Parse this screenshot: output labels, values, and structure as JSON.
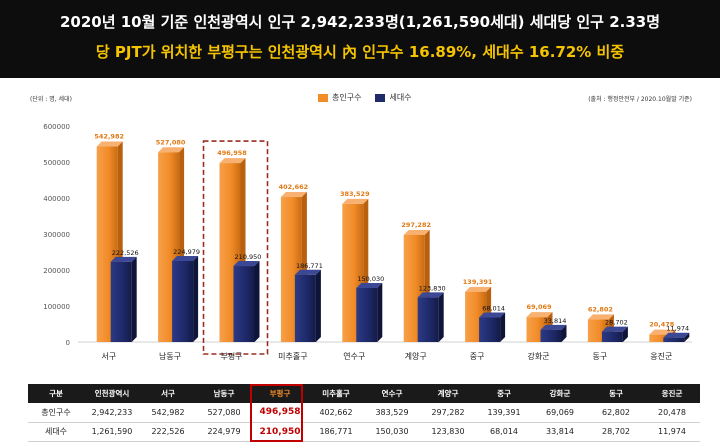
{
  "header": {
    "line1": "2020년 10월 기준 인천광역시 인구 2,942,233명(1,261,590세대) 세대당 인구 2.33명",
    "line2": "당 PJT가 위치한 부평구는 인천광역시 內 인구수 16.89%, 세대수 16.72% 비중"
  },
  "unit_note": "(단위 : 명, 세대)",
  "source_note": "(출처 : 행정안전부 / 2020.10월말 기준)",
  "colors": {
    "orange": "#f28c28",
    "navy": "#1f2a6b",
    "highlight": "#9b2d20",
    "banner": "#0d0d0d",
    "line2": "#f5c400"
  },
  "chart_data": {
    "type": "bar",
    "categories": [
      "서구",
      "남동구",
      "부평구",
      "미추홀구",
      "연수구",
      "계양구",
      "중구",
      "강화군",
      "동구",
      "옹진군"
    ],
    "series": [
      {
        "name": "총인구수",
        "values": [
          542982,
          527080,
          496958,
          402662,
          383529,
          297282,
          139391,
          69069,
          62802,
          20478
        ],
        "labels": [
          "542,982",
          "527,080",
          "496,958",
          "402,662",
          "383,529",
          "297,282",
          "139,391",
          "69,069",
          "62,802",
          "20,478"
        ]
      },
      {
        "name": "세대수",
        "values": [
          222526,
          224979,
          210950,
          186771,
          150030,
          123830,
          68014,
          33814,
          28702,
          11974
        ],
        "labels": [
          "222,526",
          "224,979",
          "210,950",
          "186,771",
          "150,030",
          "123,830",
          "68,014",
          "33,814",
          "28,702",
          "11,974"
        ]
      }
    ],
    "ylim": [
      0,
      600000
    ],
    "yticks": [
      0,
      100000,
      200000,
      300000,
      400000,
      500000,
      600000
    ],
    "ytick_labels": [
      "0",
      "100000",
      "200000",
      "300000",
      "400000",
      "500000",
      "600000"
    ],
    "highlight_category": "부평구",
    "legend_position": "top-center",
    "grid": false
  },
  "table": {
    "headers": [
      "구분",
      "인천광역시",
      "서구",
      "남동구",
      "부평구",
      "미추홀구",
      "연수구",
      "계양구",
      "중구",
      "강화군",
      "동구",
      "옹진군"
    ],
    "rows": [
      [
        "총인구수",
        "2,942,233",
        "542,982",
        "527,080",
        "496,958",
        "402,662",
        "383,529",
        "297,282",
        "139,391",
        "69,069",
        "62,802",
        "20,478"
      ],
      [
        "세대수",
        "1,261,590",
        "222,526",
        "224,979",
        "210,950",
        "186,771",
        "150,030",
        "123,830",
        "68,014",
        "33,814",
        "28,702",
        "11,974"
      ]
    ],
    "highlight_col": 4
  }
}
